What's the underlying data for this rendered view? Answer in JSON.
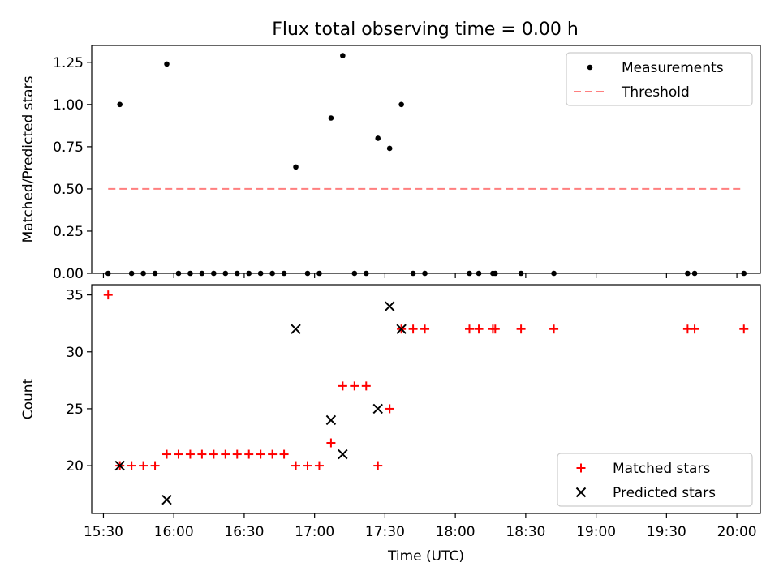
{
  "figure_title": "Flux total observing time = 0.00 h",
  "chart_data": [
    {
      "type": "scatter",
      "title": "Flux total observing time = 0.00 h",
      "xlabel": "",
      "ylabel": "Matched/Predicted stars",
      "xlim": [
        "15:25",
        "20:10"
      ],
      "ylim": [
        0,
        1.35
      ],
      "x_ticks": [
        "15:30",
        "16:00",
        "16:30",
        "17:00",
        "17:30",
        "18:00",
        "18:30",
        "19:00",
        "19:30",
        "20:00"
      ],
      "y_ticks": [
        "0.00",
        "0.25",
        "0.50",
        "0.75",
        "1.00",
        "1.25"
      ],
      "legend_position": "top-right",
      "series": [
        {
          "name": "Measurements",
          "marker": "dot",
          "color": "#000000",
          "points": [
            [
              "15:32",
              0
            ],
            [
              "15:37",
              1.0
            ],
            [
              "15:42",
              0
            ],
            [
              "15:47",
              0
            ],
            [
              "15:52",
              0
            ],
            [
              "15:57",
              1.24
            ],
            [
              "16:02",
              0
            ],
            [
              "16:07",
              0
            ],
            [
              "16:12",
              0
            ],
            [
              "16:17",
              0
            ],
            [
              "16:22",
              0
            ],
            [
              "16:27",
              0
            ],
            [
              "16:32",
              0
            ],
            [
              "16:37",
              0
            ],
            [
              "16:42",
              0
            ],
            [
              "16:47",
              0
            ],
            [
              "16:52",
              0.63
            ],
            [
              "16:57",
              0
            ],
            [
              "17:02",
              0
            ],
            [
              "17:07",
              0.92
            ],
            [
              "17:12",
              1.29
            ],
            [
              "17:17",
              0
            ],
            [
              "17:22",
              0
            ],
            [
              "17:27",
              0.8
            ],
            [
              "17:32",
              0.74
            ],
            [
              "17:37",
              1.0
            ],
            [
              "17:42",
              0
            ],
            [
              "17:47",
              0
            ],
            [
              "18:06",
              0
            ],
            [
              "18:10",
              0
            ],
            [
              "18:16",
              0
            ],
            [
              "18:17",
              0
            ],
            [
              "18:28",
              0
            ],
            [
              "18:42",
              0
            ],
            [
              "19:39",
              0
            ],
            [
              "19:42",
              0
            ],
            [
              "20:03",
              0
            ]
          ]
        },
        {
          "name": "Threshold",
          "marker": "dashed-line",
          "color": "#ff7f7f",
          "points": [
            [
              "15:32",
              0.5
            ],
            [
              "20:03",
              0.5
            ]
          ]
        }
      ]
    },
    {
      "type": "scatter",
      "title": "",
      "xlabel": "Time (UTC)",
      "ylabel": "Count",
      "xlim": [
        "15:25",
        "20:10"
      ],
      "ylim": [
        15.8,
        35.9
      ],
      "x_ticks": [
        "15:30",
        "16:00",
        "16:30",
        "17:00",
        "17:30",
        "18:00",
        "18:30",
        "19:00",
        "19:30",
        "20:00"
      ],
      "y_ticks": [
        "20",
        "25",
        "30",
        "35"
      ],
      "legend_position": "bottom-right",
      "series": [
        {
          "name": "Matched stars",
          "marker": "plus",
          "color": "#ff0000",
          "points": [
            [
              "15:32",
              35
            ],
            [
              "15:37",
              20
            ],
            [
              "15:42",
              20
            ],
            [
              "15:47",
              20
            ],
            [
              "15:52",
              20
            ],
            [
              "15:57",
              21
            ],
            [
              "16:02",
              21
            ],
            [
              "16:07",
              21
            ],
            [
              "16:12",
              21
            ],
            [
              "16:17",
              21
            ],
            [
              "16:22",
              21
            ],
            [
              "16:27",
              21
            ],
            [
              "16:32",
              21
            ],
            [
              "16:37",
              21
            ],
            [
              "16:42",
              21
            ],
            [
              "16:47",
              21
            ],
            [
              "16:52",
              20
            ],
            [
              "16:57",
              20
            ],
            [
              "17:02",
              20
            ],
            [
              "17:07",
              22
            ],
            [
              "17:12",
              27
            ],
            [
              "17:17",
              27
            ],
            [
              "17:22",
              27
            ],
            [
              "17:27",
              20
            ],
            [
              "17:32",
              25
            ],
            [
              "17:37",
              32
            ],
            [
              "17:42",
              32
            ],
            [
              "17:47",
              32
            ],
            [
              "18:06",
              32
            ],
            [
              "18:10",
              32
            ],
            [
              "18:16",
              32
            ],
            [
              "18:17",
              32
            ],
            [
              "18:28",
              32
            ],
            [
              "18:42",
              32
            ],
            [
              "19:39",
              32
            ],
            [
              "19:42",
              32
            ],
            [
              "20:03",
              32
            ]
          ]
        },
        {
          "name": "Predicted stars",
          "marker": "x",
          "color": "#000000",
          "points": [
            [
              "15:37",
              20
            ],
            [
              "15:57",
              17
            ],
            [
              "16:52",
              32
            ],
            [
              "17:07",
              24
            ],
            [
              "17:12",
              21
            ],
            [
              "17:27",
              25
            ],
            [
              "17:32",
              34
            ],
            [
              "17:37",
              32
            ]
          ]
        }
      ]
    }
  ]
}
